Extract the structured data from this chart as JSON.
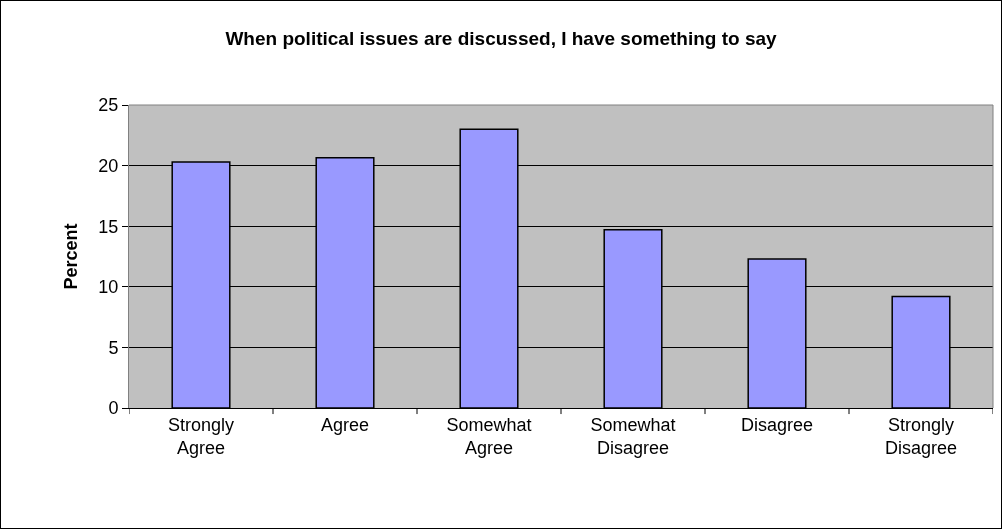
{
  "chart_data": {
    "type": "bar",
    "title": "When political issues are discussed, I have something to say",
    "ylabel": "Percent",
    "categories": [
      "Strongly Agree",
      "Agree",
      "Somewhat Agree",
      "Somewhat Disagree",
      "Disagree",
      "Strongly Disagree"
    ],
    "values": [
      20.3,
      20.65,
      23.0,
      14.7,
      12.3,
      9.2
    ],
    "color": "#9999ff",
    "ylim": [
      0,
      25
    ],
    "yticks": [
      0,
      5,
      10,
      15,
      20,
      25
    ],
    "grid": "y",
    "legend": false
  }
}
